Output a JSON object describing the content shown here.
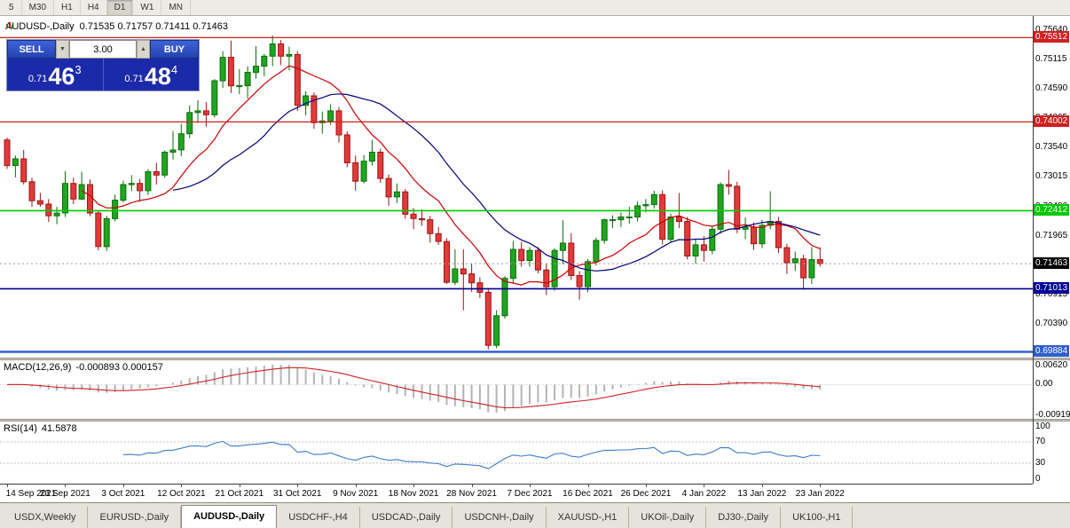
{
  "toolbar": {
    "timeframes": [
      "5",
      "M30",
      "H1",
      "H4",
      "D1",
      "W1",
      "MN"
    ],
    "active": "D1"
  },
  "icons": {
    "triangle_down": "▼",
    "triangle_up": "▲"
  },
  "trade_panel": {
    "sell_label": "SELL",
    "buy_label": "BUY",
    "volume": "3.00",
    "sell_price": {
      "prefix": "0.71",
      "big": "46",
      "sup": "3"
    },
    "buy_price": {
      "prefix": "0.71",
      "big": "48",
      "sup": "4"
    }
  },
  "tabs": {
    "items": [
      "USDX,Weekly",
      "EURUSD-,Daily",
      "AUDUSD-,Daily",
      "USDCHF-,H4",
      "USDCAD-,Daily",
      "USDCNH-,Daily",
      "XAUUSD-,H1",
      "UKOil-,Daily",
      "DJ30-,Daily",
      "UK100-,H1"
    ],
    "active_index": 2
  },
  "chart_data": {
    "type": "candlestick",
    "symbol": "AUDUSD-",
    "timeframe": "Daily",
    "title": "AUDUSD-,Daily",
    "ohlc_readout": "0.71535 0.71757 0.71411 0.71463",
    "y_range": {
      "top": 0.759,
      "bottom": 0.6978
    },
    "layout": {
      "x_start": 8,
      "x_step": 9.35,
      "body_width": 6,
      "x_labels_every": 7
    },
    "colors": {
      "up": "#1fa51f",
      "up_border": "#0b6e0b",
      "down": "#e03a3a",
      "down_border": "#9e1414"
    },
    "y_axis_ticks": [
      "0.75640",
      "0.75115",
      "0.74590",
      "0.74065",
      "0.73540",
      "0.73015",
      "0.72490",
      "0.71965",
      "0.70915",
      "0.70390"
    ],
    "x_labels": [
      "14 Sep 2021",
      "23 Sep 2021",
      "3 Oct 2021",
      "12 Oct 2021",
      "21 Oct 2021",
      "31 Oct 2021",
      "9 Nov 2021",
      "18 Nov 2021",
      "28 Nov 2021",
      "7 Dec 2021",
      "16 Dec 2021",
      "26 Dec 2021",
      "4 Jan 2022",
      "13 Jan 2022",
      "23 Jan 2022"
    ],
    "levels": [
      {
        "price": 0.75512,
        "label": "0.75512",
        "color": "#d02020",
        "width": 1.3
      },
      {
        "price": 0.74002,
        "label": "0.74002",
        "color": "#d02020",
        "width": 1.3
      },
      {
        "price": 0.72412,
        "label": "0.72412",
        "color": "#00c800",
        "width": 1.6
      },
      {
        "price": 0.71013,
        "label": "0.71013",
        "color": "#000096",
        "width": 1.6
      },
      {
        "price": 0.69884,
        "label": "0.69884",
        "color": "#2e5fcc",
        "width": 2.4
      }
    ],
    "current_price": {
      "price": 0.71463,
      "label": "0.71463",
      "label_bg": "#000000"
    },
    "overlays": [
      {
        "type": "sma",
        "period": 10,
        "color": "#cc0000"
      },
      {
        "type": "sma",
        "period": 21,
        "color": "#00007a"
      }
    ],
    "macd": {
      "title": "MACD(12,26,9)",
      "current_values": "-0.000893 0.000157",
      "fast": 12,
      "slow": 26,
      "signal": 9,
      "range": {
        "max": 0.0062,
        "min": -0.00919
      },
      "ticks": [
        {
          "label": "0.00620",
          "value": 0.0062
        },
        {
          "label": "0.00",
          "value": 0
        },
        {
          "label": "-0.00919",
          "value": -0.00919
        }
      ],
      "histogram_color": "#b4b4b4",
      "signal_color": "#cc2222"
    },
    "rsi": {
      "title": "RSI(14)",
      "current_value": "41.5878",
      "period": 14,
      "color": "#3b7dc8",
      "levels": [
        70,
        30
      ],
      "ticks": [
        {
          "label": "100",
          "value": 100
        },
        {
          "label": "70",
          "value": 70
        },
        {
          "label": "30",
          "value": 30
        },
        {
          "label": "0",
          "value": 0
        }
      ]
    },
    "candles": [
      [
        0.7368,
        0.7372,
        0.7316,
        0.7322
      ],
      [
        0.7322,
        0.734,
        0.7301,
        0.7334
      ],
      [
        0.7334,
        0.735,
        0.7288,
        0.7293
      ],
      [
        0.7293,
        0.73,
        0.7248,
        0.7259
      ],
      [
        0.7259,
        0.7273,
        0.7248,
        0.7253
      ],
      [
        0.7253,
        0.7262,
        0.7221,
        0.7232
      ],
      [
        0.7232,
        0.7248,
        0.7217,
        0.7237
      ],
      [
        0.7237,
        0.7312,
        0.723,
        0.729
      ],
      [
        0.729,
        0.73,
        0.7253,
        0.7262
      ],
      [
        0.7262,
        0.7311,
        0.7261,
        0.7288
      ],
      [
        0.7288,
        0.7297,
        0.7231,
        0.7237
      ],
      [
        0.7237,
        0.7242,
        0.717,
        0.7177
      ],
      [
        0.7177,
        0.7232,
        0.7169,
        0.7227
      ],
      [
        0.7227,
        0.727,
        0.7222,
        0.726
      ],
      [
        0.726,
        0.7295,
        0.7256,
        0.7288
      ],
      [
        0.7288,
        0.7305,
        0.7276,
        0.729
      ],
      [
        0.729,
        0.7298,
        0.7257,
        0.7277
      ],
      [
        0.7277,
        0.7316,
        0.7269,
        0.7311
      ],
      [
        0.7311,
        0.7327,
        0.7288,
        0.7305
      ],
      [
        0.7305,
        0.7349,
        0.73,
        0.7346
      ],
      [
        0.7346,
        0.7384,
        0.7333,
        0.735
      ],
      [
        0.735,
        0.7397,
        0.7339,
        0.7379
      ],
      [
        0.7379,
        0.743,
        0.7371,
        0.7417
      ],
      [
        0.7417,
        0.7439,
        0.7398,
        0.742
      ],
      [
        0.742,
        0.7436,
        0.7392,
        0.7413
      ],
      [
        0.7413,
        0.7477,
        0.7408,
        0.7474
      ],
      [
        0.7474,
        0.7527,
        0.7461,
        0.7516
      ],
      [
        0.7516,
        0.7546,
        0.7452,
        0.7465
      ],
      [
        0.7465,
        0.7495,
        0.745,
        0.7465
      ],
      [
        0.7465,
        0.75,
        0.7442,
        0.7489
      ],
      [
        0.7489,
        0.7536,
        0.7478,
        0.75
      ],
      [
        0.75,
        0.7522,
        0.7482,
        0.7518
      ],
      [
        0.7518,
        0.7555,
        0.75,
        0.754
      ],
      [
        0.754,
        0.7547,
        0.7502,
        0.7518
      ],
      [
        0.7518,
        0.7535,
        0.7493,
        0.7521
      ],
      [
        0.7521,
        0.7527,
        0.742,
        0.743
      ],
      [
        0.743,
        0.7455,
        0.7412,
        0.7447
      ],
      [
        0.7447,
        0.7453,
        0.7388,
        0.7399
      ],
      [
        0.7399,
        0.7419,
        0.7379,
        0.7402
      ],
      [
        0.7402,
        0.7432,
        0.7395,
        0.742
      ],
      [
        0.742,
        0.7427,
        0.7363,
        0.7377
      ],
      [
        0.7377,
        0.7383,
        0.7319,
        0.7327
      ],
      [
        0.7327,
        0.734,
        0.7277,
        0.7294
      ],
      [
        0.7294,
        0.7341,
        0.729,
        0.733
      ],
      [
        0.733,
        0.7368,
        0.7322,
        0.7346
      ],
      [
        0.7346,
        0.7352,
        0.7291,
        0.7299
      ],
      [
        0.7299,
        0.7306,
        0.725,
        0.7266
      ],
      [
        0.7266,
        0.729,
        0.7255,
        0.7275
      ],
      [
        0.7275,
        0.728,
        0.7227,
        0.7235
      ],
      [
        0.7235,
        0.7246,
        0.7208,
        0.7227
      ],
      [
        0.7227,
        0.7244,
        0.7214,
        0.7225
      ],
      [
        0.7225,
        0.7232,
        0.7184,
        0.72
      ],
      [
        0.72,
        0.7212,
        0.718,
        0.7186
      ],
      [
        0.7186,
        0.7192,
        0.711,
        0.7113
      ],
      [
        0.7113,
        0.7172,
        0.7108,
        0.7137
      ],
      [
        0.7137,
        0.7172,
        0.7063,
        0.7128
      ],
      [
        0.7128,
        0.7146,
        0.7096,
        0.7112
      ],
      [
        0.7112,
        0.7122,
        0.7085,
        0.7095
      ],
      [
        0.7095,
        0.7103,
        0.6993,
        0.7
      ],
      [
        0.7,
        0.7063,
        0.6995,
        0.7053
      ],
      [
        0.7053,
        0.7124,
        0.7048,
        0.712
      ],
      [
        0.712,
        0.7187,
        0.7112,
        0.7172
      ],
      [
        0.7172,
        0.7185,
        0.7141,
        0.7152
      ],
      [
        0.7152,
        0.7176,
        0.7141,
        0.717
      ],
      [
        0.717,
        0.7176,
        0.7129,
        0.7135
      ],
      [
        0.7135,
        0.7146,
        0.709,
        0.7105
      ],
      [
        0.7105,
        0.7174,
        0.7098,
        0.717
      ],
      [
        0.717,
        0.7224,
        0.7145,
        0.7183
      ],
      [
        0.7183,
        0.7201,
        0.7117,
        0.7125
      ],
      [
        0.7125,
        0.7133,
        0.7082,
        0.7105
      ],
      [
        0.7105,
        0.7155,
        0.7095,
        0.715
      ],
      [
        0.715,
        0.7193,
        0.7143,
        0.7188
      ],
      [
        0.7188,
        0.7227,
        0.7182,
        0.7225
      ],
      [
        0.7225,
        0.7233,
        0.721,
        0.7225
      ],
      [
        0.7225,
        0.7238,
        0.7212,
        0.723
      ],
      [
        0.723,
        0.7248,
        0.7218,
        0.723
      ],
      [
        0.723,
        0.7258,
        0.7222,
        0.725
      ],
      [
        0.725,
        0.7262,
        0.7238,
        0.7252
      ],
      [
        0.7252,
        0.7277,
        0.7245,
        0.727
      ],
      [
        0.727,
        0.7278,
        0.7181,
        0.719
      ],
      [
        0.719,
        0.7236,
        0.7184,
        0.723
      ],
      [
        0.723,
        0.7273,
        0.721,
        0.7222
      ],
      [
        0.7222,
        0.723,
        0.7154,
        0.716
      ],
      [
        0.716,
        0.719,
        0.7146,
        0.718
      ],
      [
        0.718,
        0.7196,
        0.715,
        0.717
      ],
      [
        0.717,
        0.7214,
        0.7163,
        0.7208
      ],
      [
        0.7208,
        0.7292,
        0.72,
        0.7288
      ],
      [
        0.7288,
        0.7314,
        0.727,
        0.7285
      ],
      [
        0.7285,
        0.7293,
        0.7201,
        0.7208
      ],
      [
        0.7208,
        0.7229,
        0.719,
        0.7212
      ],
      [
        0.7212,
        0.722,
        0.7171,
        0.7182
      ],
      [
        0.7182,
        0.7225,
        0.7174,
        0.7215
      ],
      [
        0.7215,
        0.7276,
        0.7208,
        0.7222
      ],
      [
        0.7222,
        0.723,
        0.7165,
        0.7175
      ],
      [
        0.7175,
        0.7182,
        0.7128,
        0.7148
      ],
      [
        0.7148,
        0.7168,
        0.7133,
        0.7155
      ],
      [
        0.7155,
        0.7162,
        0.7101,
        0.7121
      ],
      [
        0.7121,
        0.7176,
        0.711,
        0.71535
      ],
      [
        0.71535,
        0.71757,
        0.71411,
        0.71463
      ]
    ]
  }
}
